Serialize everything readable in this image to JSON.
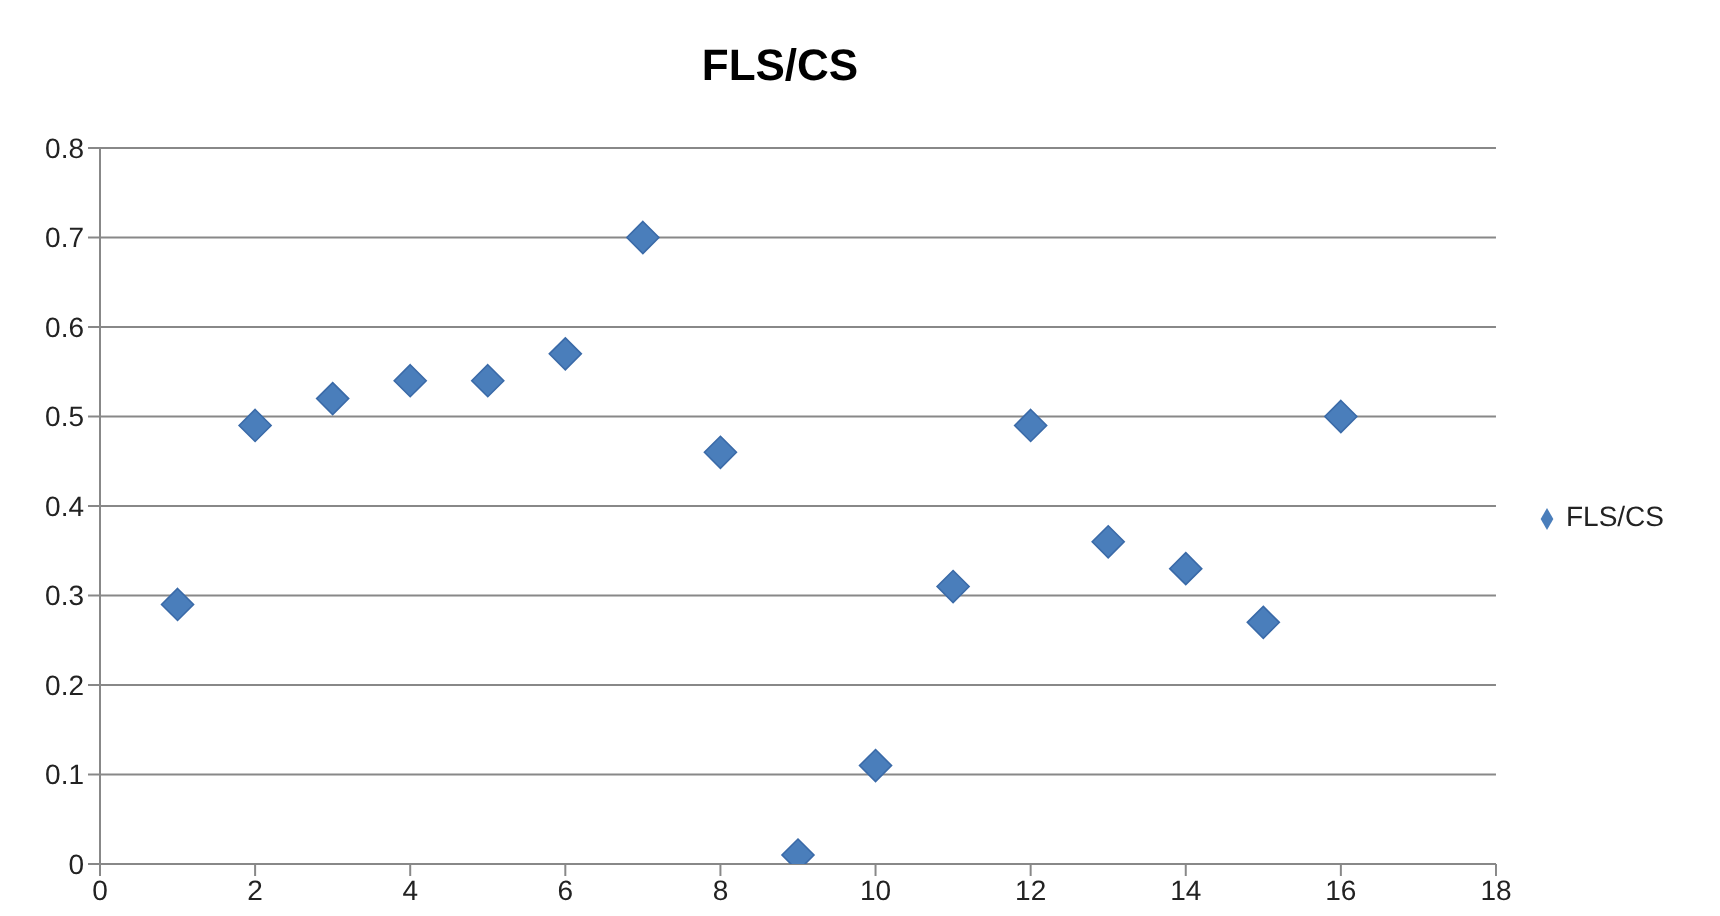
{
  "chart_data": {
    "type": "scatter",
    "title": "FLS/CS",
    "x": [
      1,
      2,
      3,
      4,
      5,
      6,
      7,
      8,
      9,
      10,
      11,
      12,
      13,
      14,
      15,
      16
    ],
    "series": [
      {
        "name": "FLS/CS",
        "color": "#4a7ebb",
        "values": [
          0.29,
          0.49,
          0.52,
          0.54,
          0.54,
          0.57,
          0.7,
          0.46,
          0.01,
          0.11,
          0.31,
          0.49,
          0.36,
          0.33,
          0.27,
          0.5
        ]
      }
    ],
    "xlim": [
      0,
      18
    ],
    "xticks": [
      0,
      2,
      4,
      6,
      8,
      10,
      12,
      14,
      16,
      18
    ],
    "ylim": [
      0,
      0.8
    ],
    "yticks": [
      0,
      0.1,
      0.2,
      0.3,
      0.4,
      0.5,
      0.6,
      0.7,
      0.8
    ],
    "grid": "y",
    "legend": "right",
    "marker": "diamond"
  }
}
